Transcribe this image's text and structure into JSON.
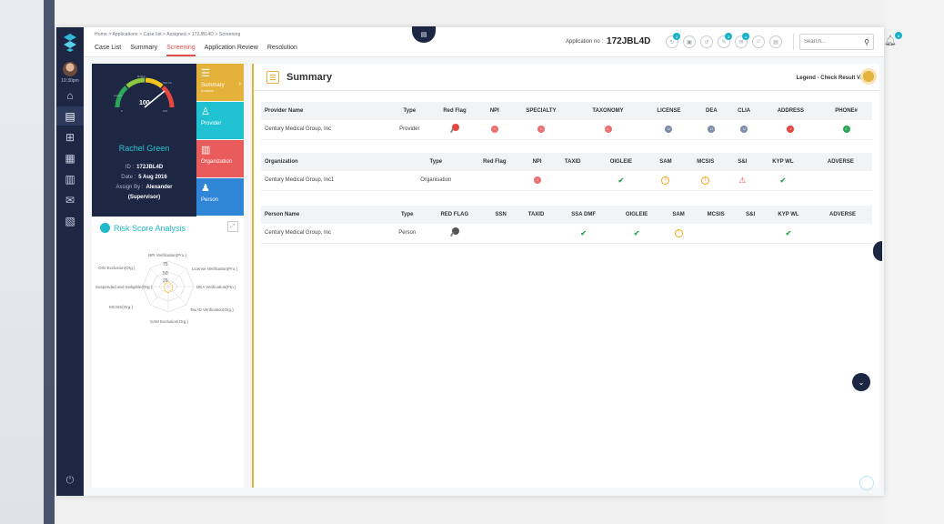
{
  "breadcrumb": "Home > Applications > Case list > Assigned > 172JBL4D > Screening",
  "nav_tabs": [
    {
      "label": "Case List",
      "active": false
    },
    {
      "label": "Summary",
      "active": false
    },
    {
      "label": "Screening",
      "active": true
    },
    {
      "label": "Application Review",
      "active": false
    },
    {
      "label": "Resolution",
      "active": false
    }
  ],
  "application": {
    "label": "Application no :",
    "number": "172JBL4D"
  },
  "header_icons": [
    {
      "icon": "sync-icon",
      "badge": "3"
    },
    {
      "icon": "briefcase-icon",
      "badge": ""
    },
    {
      "icon": "history-icon",
      "badge": ""
    },
    {
      "icon": "edit-icon",
      "badge": "3"
    },
    {
      "icon": "mail-icon",
      "badge": "4"
    },
    {
      "icon": "people-icon",
      "badge": ""
    },
    {
      "icon": "print-icon",
      "badge": ""
    }
  ],
  "search": {
    "placeholder": "Search..."
  },
  "notifications": {
    "badge": "6"
  },
  "rail": {
    "time": "10:30pm"
  },
  "profile": {
    "score": "100",
    "gauge_min": "0",
    "gauge_max": "100",
    "gauge_labels": [
      "Low risk",
      "Medium",
      "High risk"
    ],
    "name": "Rachel Green",
    "id_label": "ID :",
    "id": "172JBL4D",
    "date_label": "Date :",
    "date": "5 Aug 2016",
    "assign_label": "Assign By :",
    "assign": "Alexander",
    "assign_role": "(Supervisor)"
  },
  "side_tabs": [
    {
      "label": "Summary",
      "sub": "Analyse",
      "icon": "list-icon",
      "color": "#e4b23a"
    },
    {
      "label": "Provider",
      "sub": "",
      "icon": "doctor-icon",
      "color": "#20c2d2"
    },
    {
      "label": "Organization",
      "sub": "",
      "icon": "building-icon",
      "color": "#ea5b5b"
    },
    {
      "label": "Person",
      "sub": "",
      "icon": "person-icon",
      "color": "#2f86d6"
    }
  ],
  "risk": {
    "title": "Risk Score Analysis",
    "ticks": [
      "75",
      "50",
      "25"
    ],
    "axes": [
      "NPI Verification(Pro.)",
      "License Verification(Pro.)",
      "DEA Verification(Pro.)",
      "Tax ID Verification(Org.)",
      "SAM Exclusion(Org.)",
      "MCSIS(Org.)",
      "Suspended and Ineligible(Org.)",
      "OIG Exclusion(Org.)"
    ]
  },
  "summary": {
    "title": "Summary",
    "legend": "Legend - Check Result Values"
  },
  "provider_table": {
    "headers": [
      "Provider Name",
      "Type",
      "Red Flag",
      "NPI",
      "SPECIALTY",
      "TAXONOMY",
      "LICENSE",
      "DEA",
      "CLIA",
      "ADDRESS",
      "PHONE#"
    ],
    "rows": [
      {
        "name": "Century Medical Group, Inc",
        "type": "Provider",
        "cells": [
          "flag-red",
          "pink",
          "pink",
          "pink",
          "gray",
          "gray",
          "gray",
          "red",
          "green"
        ]
      }
    ]
  },
  "org_table": {
    "headers": [
      "Organization",
      "Type",
      "Red Flag",
      "NPI",
      "TAXID",
      "OIGLEIE",
      "SAM",
      "MCSIS",
      "S&I",
      "KYP WL",
      "ADVERSE"
    ],
    "rows": [
      {
        "name": "Century Medical Group, Inc1",
        "type": "Organisation",
        "cells": [
          "",
          "pink",
          "",
          "check",
          "warn",
          "warn",
          "tri",
          "check",
          ""
        ]
      }
    ]
  },
  "person_table": {
    "headers": [
      "Person Name",
      "Type",
      "RED FLAG",
      "SSN",
      "TAXID",
      "SSA DMF",
      "OIGLEIE",
      "SAM",
      "MCSIS",
      "S&I",
      "KYP WL",
      "ADVERSE"
    ],
    "rows": [
      {
        "name": "Century Medical Group, Inc",
        "type": "Person",
        "cells": [
          "flag-dark",
          "",
          "",
          "check",
          "check",
          "warn",
          "",
          "",
          "check",
          ""
        ]
      }
    ]
  }
}
